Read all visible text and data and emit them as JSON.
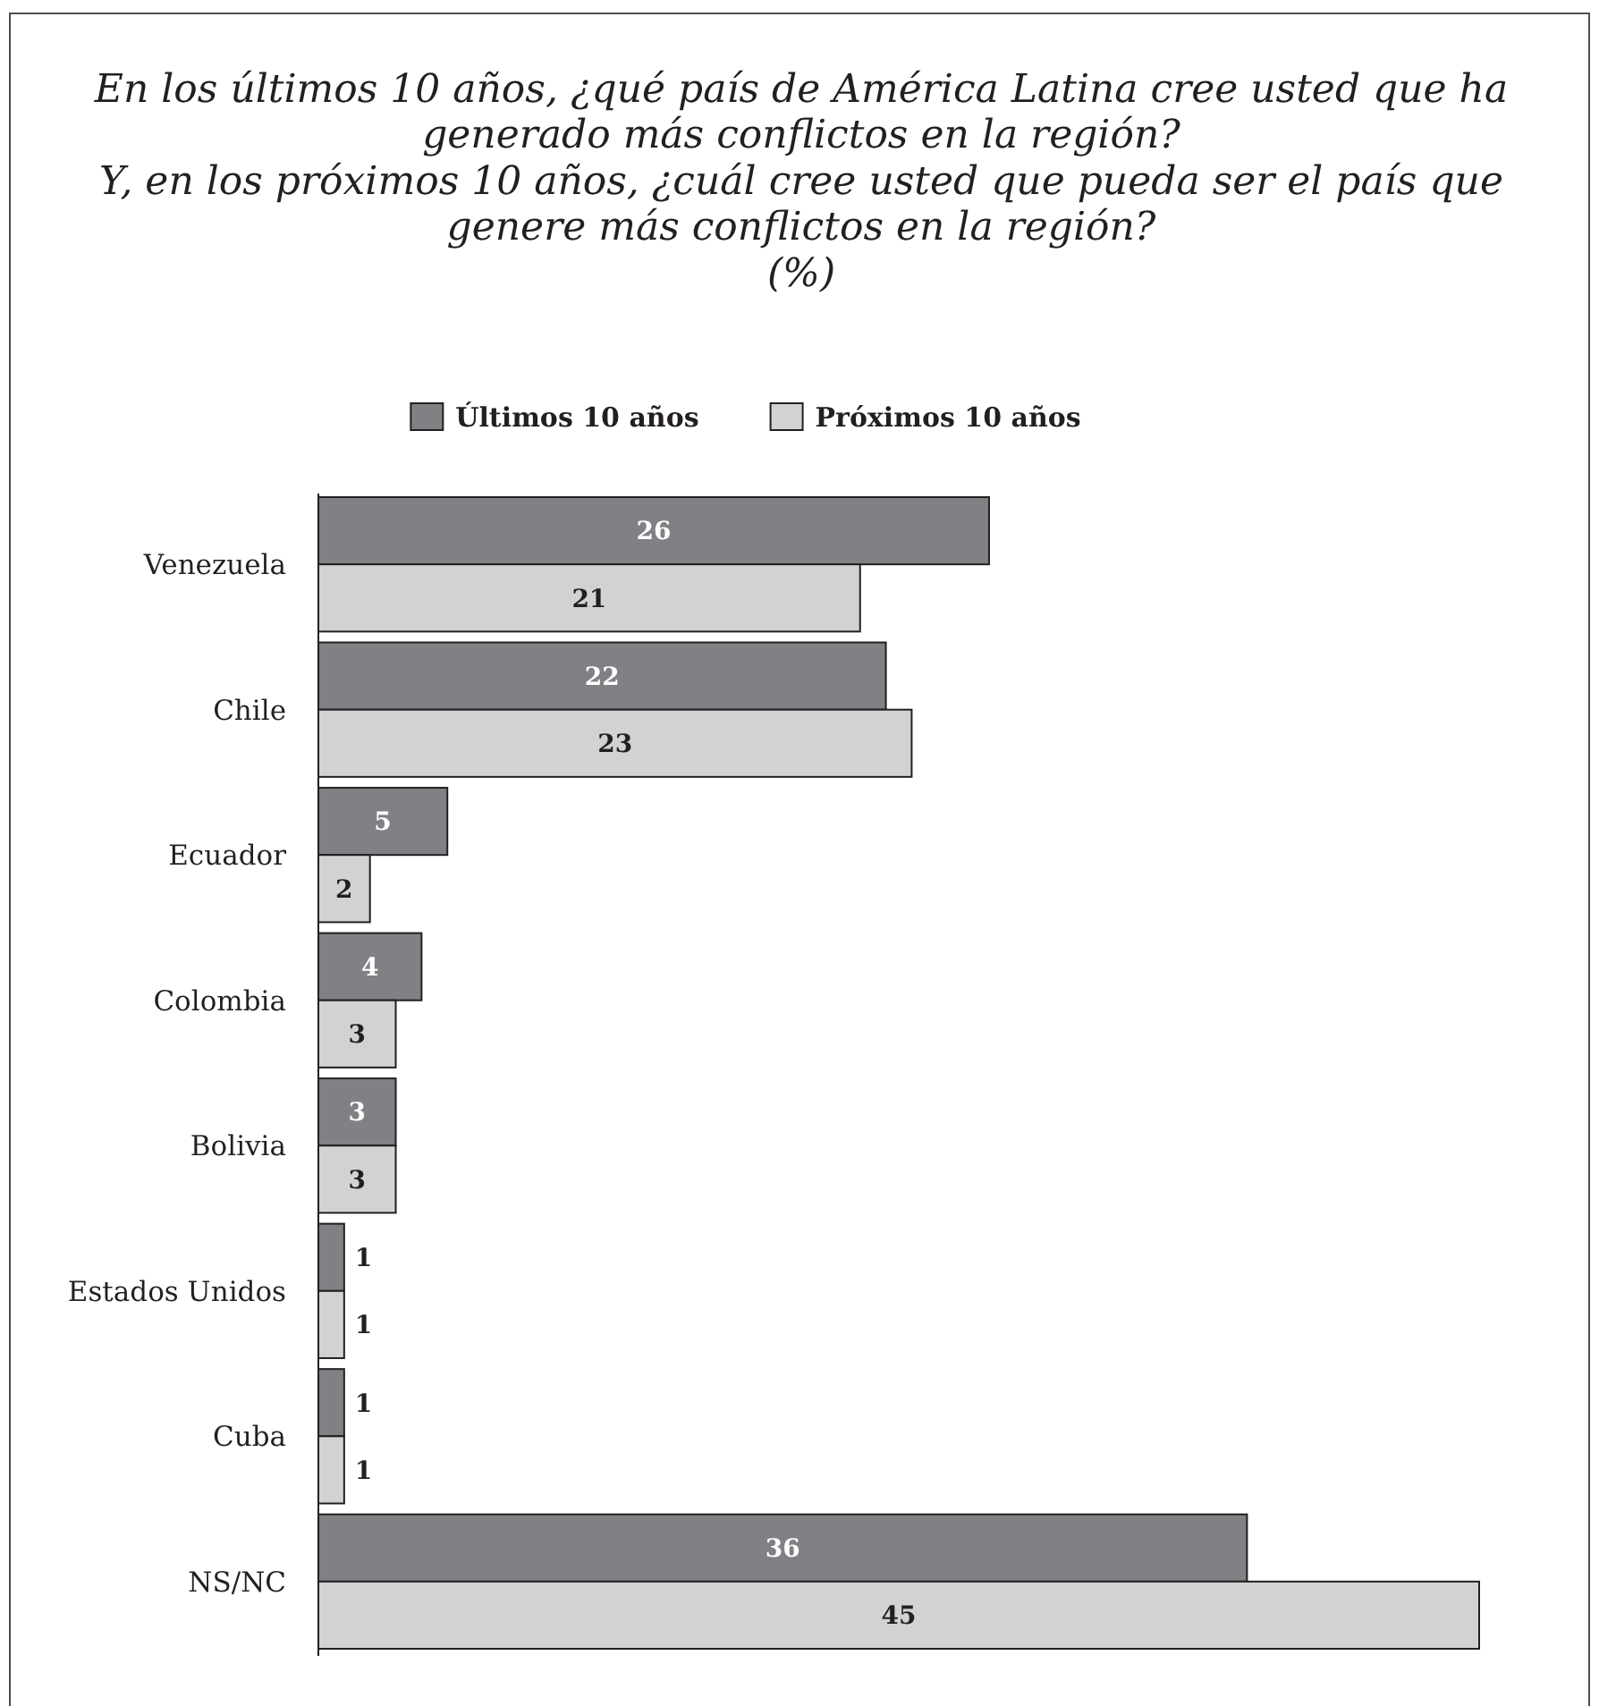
{
  "chart_data": {
    "type": "bar",
    "orientation": "horizontal",
    "title": "En los últimos 10 años, ¿qué país de América Latina cree usted que ha generado más conflictos en la región?\nY, en los próximos 10 años, ¿cuál cree usted que pueda ser el país que genere más conflictos en la región?",
    "subtitle": "(%)",
    "categories": [
      "Venezuela",
      "Chile",
      "Ecuador",
      "Colombia",
      "Bolivia",
      "Estados Unidos",
      "Cuba",
      "NS/NC"
    ],
    "series": [
      {
        "name": "Últimos 10 años",
        "color": "#808184",
        "values": [
          26,
          22,
          5,
          4,
          3,
          1,
          1,
          36
        ]
      },
      {
        "name": "Próximos 10 años",
        "color": "#d1d2d4",
        "values": [
          21,
          23,
          2,
          3,
          3,
          1,
          1,
          45
        ]
      }
    ],
    "data_labels": true,
    "legend": "top"
  }
}
